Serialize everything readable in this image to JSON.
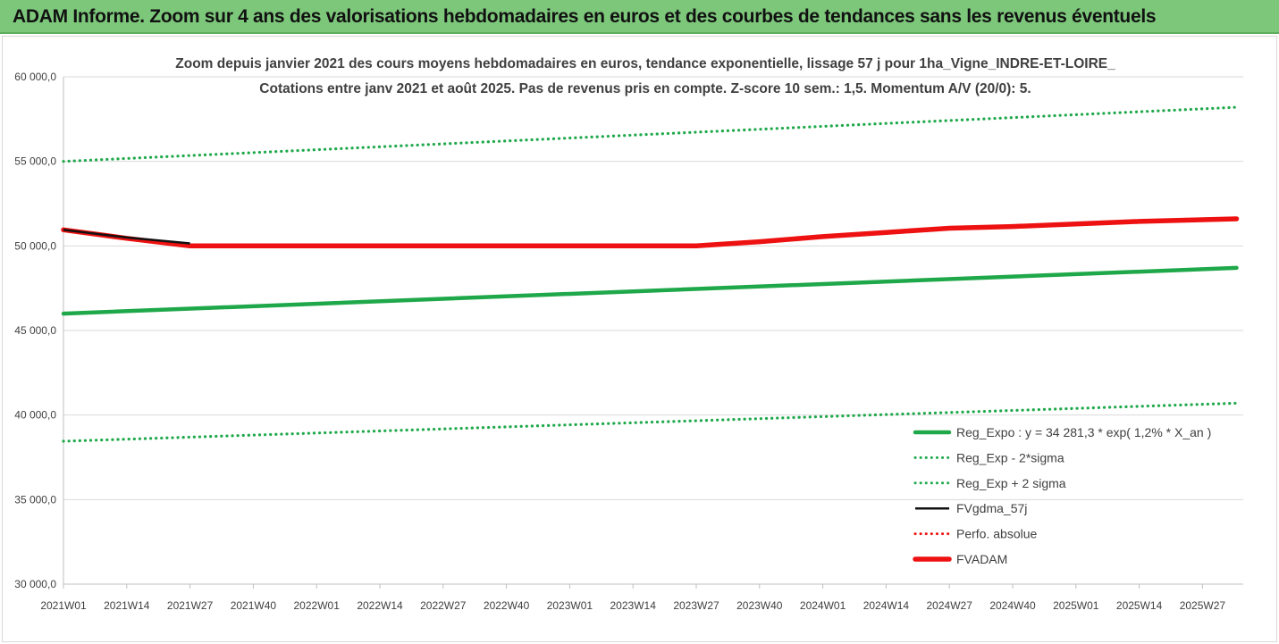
{
  "banner": {
    "title": "ADAM Informe. Zoom sur 4 ans des valorisations hebdomadaires en euros et des courbes de tendances sans les revenus éventuels"
  },
  "colors": {
    "banner_bg": "#7dc77b",
    "green": "#1fa84a",
    "red": "#ee1111",
    "black": "#111111",
    "grid": "#d9d9d9"
  },
  "chart_data": {
    "type": "line",
    "title_line1": "Zoom depuis janvier 2021 des cours moyens hebdomadaires en euros, tendance exponentielle, lissage 57 j pour 1ha_Vigne_INDRE-ET-LOIRE_",
    "title_line2": "Cotations entre janv 2021 et août 2025.  Pas de revenus pris en compte. Z-score 10 sem.: 1,5. Momentum A/V (20/0): 5.",
    "ylim": [
      30000,
      60000
    ],
    "y_ticks": [
      "30 000,0",
      "35 000,0",
      "40 000,0",
      "45 000,0",
      "50 000,0",
      "55 000,0",
      "60 000,0"
    ],
    "x_tick_labels": [
      "2021W01",
      "2021W14",
      "2021W27",
      "2021W40",
      "2022W01",
      "2022W14",
      "2022W27",
      "2022W40",
      "2023W01",
      "2023W14",
      "2023W27",
      "2023W40",
      "2024W01",
      "2024W14",
      "2024W27",
      "2024W40",
      "2025W01",
      "2025W14",
      "2025W27"
    ],
    "legend_position": "bottom-right",
    "grid": "horizontal",
    "series": [
      {
        "name": "Reg_Expo : y = 34 281,3 * exp( 1,2% *  X_an )",
        "style": "solid",
        "color": "#1fa84a",
        "points": [
          [
            "2021W01",
            46000
          ],
          [
            "2025W34",
            48700
          ]
        ]
      },
      {
        "name": "Reg_Exp - 2*sigma",
        "style": "dotted",
        "color": "#1fa84a",
        "points": [
          [
            "2021W01",
            38450
          ],
          [
            "2025W34",
            40700
          ]
        ]
      },
      {
        "name": "Reg_Exp + 2 sigma",
        "style": "dotted",
        "color": "#1fa84a",
        "points": [
          [
            "2021W01",
            55000
          ],
          [
            "2025W34",
            58200
          ]
        ]
      },
      {
        "name": "FVgdma_57j",
        "style": "solid",
        "color": "#111111",
        "points": [
          [
            "2021W01",
            50950
          ],
          [
            "2021W14",
            50500
          ],
          [
            "2021W27",
            50150
          ]
        ]
      },
      {
        "name": "Perfo. absolue",
        "style": "dotted",
        "color": "#ee1111",
        "points": []
      },
      {
        "name": "FVADAM",
        "style": "solid-thick",
        "color": "#ee1111",
        "points": [
          [
            "2021W01",
            50950
          ],
          [
            "2021W14",
            50450
          ],
          [
            "2021W27",
            50000
          ],
          [
            "2023W27",
            50000
          ],
          [
            "2023W40",
            50250
          ],
          [
            "2024W01",
            50550
          ],
          [
            "2024W14",
            50800
          ],
          [
            "2024W27",
            51050
          ],
          [
            "2024W40",
            51150
          ],
          [
            "2025W01",
            51300
          ],
          [
            "2025W14",
            51450
          ],
          [
            "2025W27",
            51550
          ],
          [
            "2025W34",
            51600
          ]
        ]
      }
    ]
  }
}
